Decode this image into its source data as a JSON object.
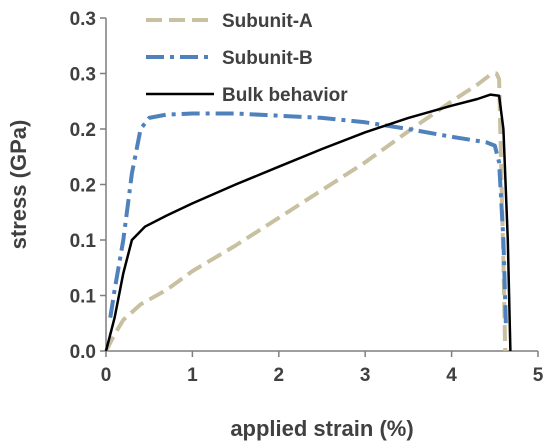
{
  "chart_data": {
    "type": "line",
    "xlabel": "applied strain (%)",
    "ylabel": "stress (GPa)",
    "xlim": [
      0,
      5
    ],
    "ylim": [
      0,
      0.3
    ],
    "x_ticks": [
      0,
      1,
      2,
      3,
      4,
      5
    ],
    "x_tick_labels": [
      "0",
      "1",
      "2",
      "3",
      "4",
      "5"
    ],
    "y_ticks": [
      0,
      0.05,
      0.1,
      0.15,
      0.2,
      0.25,
      0.3
    ],
    "y_tick_labels": [
      "0.0",
      "0.1",
      "0.1",
      "0.2",
      "0.2",
      "0.3",
      "0.3"
    ],
    "grid": false,
    "legend": "top-left",
    "series": [
      {
        "name": "Subunit-A",
        "color": "#c8c0a0",
        "style": "dashed",
        "points": [
          [
            0,
            0
          ],
          [
            0.1,
            0.015
          ],
          [
            0.2,
            0.028
          ],
          [
            0.4,
            0.042
          ],
          [
            0.7,
            0.055
          ],
          [
            1.0,
            0.072
          ],
          [
            1.5,
            0.095
          ],
          [
            2.0,
            0.12
          ],
          [
            2.5,
            0.145
          ],
          [
            3.0,
            0.17
          ],
          [
            3.5,
            0.198
          ],
          [
            4.0,
            0.225
          ],
          [
            4.3,
            0.24
          ],
          [
            4.45,
            0.249
          ],
          [
            4.52,
            0.25
          ],
          [
            4.55,
            0.245
          ],
          [
            4.57,
            0.18
          ],
          [
            4.6,
            0.08
          ],
          [
            4.62,
            0
          ]
        ]
      },
      {
        "name": "Subunit-B",
        "color": "#4f81bd",
        "style": "dashdot",
        "points": [
          [
            0.05,
            0.03
          ],
          [
            0.1,
            0.055
          ],
          [
            0.2,
            0.1
          ],
          [
            0.3,
            0.16
          ],
          [
            0.4,
            0.2
          ],
          [
            0.5,
            0.21
          ],
          [
            0.7,
            0.213
          ],
          [
            1.0,
            0.214
          ],
          [
            1.5,
            0.214
          ],
          [
            2.0,
            0.212
          ],
          [
            2.5,
            0.21
          ],
          [
            3.0,
            0.206
          ],
          [
            3.5,
            0.2
          ],
          [
            4.0,
            0.193
          ],
          [
            4.4,
            0.188
          ],
          [
            4.5,
            0.185
          ],
          [
            4.55,
            0.17
          ],
          [
            4.6,
            0.1
          ],
          [
            4.63,
            0.02
          ]
        ]
      },
      {
        "name": "Bulk behavior",
        "color": "#000000",
        "style": "solid",
        "points": [
          [
            0,
            0
          ],
          [
            0.1,
            0.03
          ],
          [
            0.2,
            0.07
          ],
          [
            0.3,
            0.1
          ],
          [
            0.45,
            0.112
          ],
          [
            0.7,
            0.122
          ],
          [
            1.0,
            0.133
          ],
          [
            1.5,
            0.15
          ],
          [
            2.0,
            0.166
          ],
          [
            2.5,
            0.182
          ],
          [
            3.0,
            0.197
          ],
          [
            3.5,
            0.21
          ],
          [
            4.0,
            0.221
          ],
          [
            4.3,
            0.227
          ],
          [
            4.45,
            0.231
          ],
          [
            4.55,
            0.23
          ],
          [
            4.6,
            0.2
          ],
          [
            4.65,
            0.1
          ],
          [
            4.68,
            0
          ]
        ]
      }
    ]
  }
}
